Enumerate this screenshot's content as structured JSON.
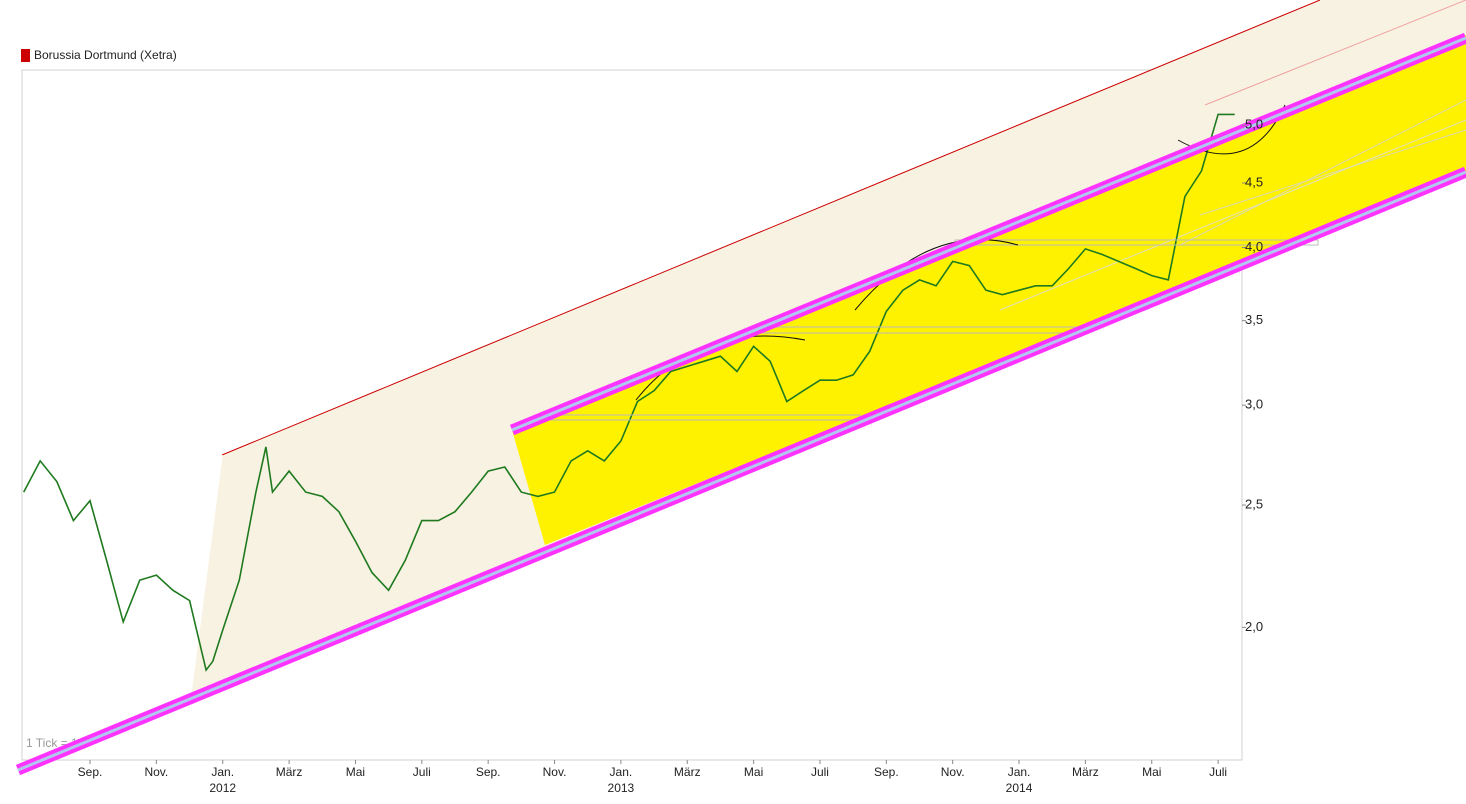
{
  "chart_data": {
    "type": "line",
    "legend": "Borussia Dortmund (Xetra)",
    "legend_color": "#cc0000",
    "note": "1 Tick = 1 T",
    "log_scale": true,
    "x": [
      -2,
      -1.5,
      -1,
      -0.5,
      0,
      0.5,
      1,
      1.5,
      2,
      2.5,
      3,
      3.5,
      3.7,
      4,
      4.5,
      5,
      5.3,
      5.5,
      6,
      6.5,
      7,
      7.5,
      8,
      8.5,
      9,
      9.5,
      10,
      10.5,
      11,
      11.5,
      12,
      12.5,
      13,
      13.5,
      14,
      14.5,
      15,
      15.5,
      16,
      16.5,
      17,
      17.5,
      18,
      18.5,
      19,
      19.5,
      20,
      20.5,
      21,
      21.5,
      22,
      22.5,
      23,
      23.5,
      24,
      24.5,
      25,
      25.5,
      26,
      26.5,
      27,
      27.5,
      28,
      28.5,
      29,
      29.5,
      30,
      30.5,
      31,
      31.5,
      32,
      32.5,
      33,
      33.5,
      34,
      34.5
    ],
    "series": [
      {
        "name": "Borussia Dortmund (Xetra)",
        "color": "#1f7a1f",
        "values": [
          2.56,
          2.71,
          2.61,
          2.43,
          2.52,
          2.26,
          2.02,
          2.18,
          2.2,
          2.14,
          2.1,
          1.85,
          1.88,
          1.99,
          2.18,
          2.56,
          2.78,
          2.56,
          2.66,
          2.56,
          2.54,
          2.47,
          2.34,
          2.21,
          2.14,
          2.26,
          2.43,
          2.43,
          2.47,
          2.56,
          2.66,
          2.68,
          2.56,
          2.54,
          2.56,
          2.71,
          2.76,
          2.71,
          2.81,
          3.02,
          3.08,
          3.19,
          3.22,
          3.25,
          3.28,
          3.19,
          3.34,
          3.25,
          3.02,
          3.08,
          3.14,
          3.14,
          3.17,
          3.31,
          3.56,
          3.7,
          3.77,
          3.73,
          3.9,
          3.87,
          3.7,
          3.67,
          3.7,
          3.73,
          3.73,
          3.85,
          3.99,
          3.95,
          3.9,
          3.85,
          3.8,
          3.77,
          4.39,
          4.6,
          5.1,
          5.1
        ]
      }
    ],
    "xlim": [
      -2.05,
      34.72
    ],
    "xticks": [
      {
        "value": 0,
        "label": "Sep."
      },
      {
        "value": 2,
        "label": "Nov."
      },
      {
        "value": 4,
        "label": "Jan."
      },
      {
        "value": 6,
        "label": "März"
      },
      {
        "value": 8,
        "label": "Mai"
      },
      {
        "value": 10,
        "label": "Juli"
      },
      {
        "value": 12,
        "label": "Sep."
      },
      {
        "value": 14,
        "label": "Nov."
      },
      {
        "value": 16,
        "label": "Jan."
      },
      {
        "value": 18,
        "label": "März"
      },
      {
        "value": 20,
        "label": "Mai"
      },
      {
        "value": 22,
        "label": "Juli"
      },
      {
        "value": 24,
        "label": "Sep."
      },
      {
        "value": 26,
        "label": "Nov."
      },
      {
        "value": 28,
        "label": "Jan."
      },
      {
        "value": 30,
        "label": "März"
      },
      {
        "value": 32,
        "label": "Mai"
      },
      {
        "value": 34,
        "label": "Juli"
      }
    ],
    "year_labels": [
      {
        "value": 4,
        "label": "2012"
      },
      {
        "value": 16,
        "label": "2013"
      },
      {
        "value": 28,
        "label": "2014"
      }
    ],
    "ylim": [
      1.57,
      5.53
    ],
    "yticks": [
      {
        "value": 2,
        "label": "2,0"
      },
      {
        "value": 2.5,
        "label": "2,5"
      },
      {
        "value": 3,
        "label": "3,0"
      },
      {
        "value": 3.5,
        "label": "3,5"
      },
      {
        "value": 4,
        "label": "4,0"
      },
      {
        "value": 4.5,
        "label": "4,5"
      },
      {
        "value": 5,
        "label": "5,0"
      }
    ]
  }
}
